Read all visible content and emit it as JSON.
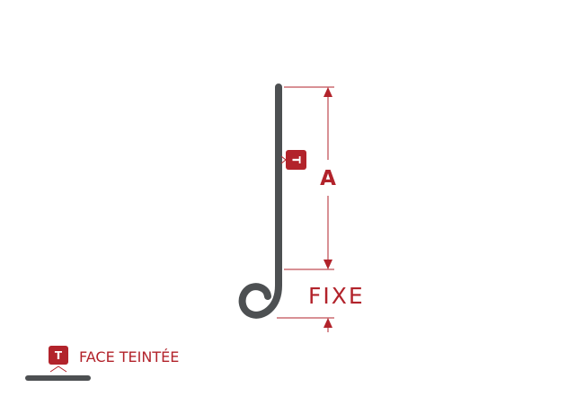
{
  "diagram": {
    "dimension_label": "A",
    "fixed_label": "FIXE",
    "badge_letter": "T"
  },
  "legend": {
    "badge_letter": "T",
    "label": "FACE TEINTÉE"
  },
  "colors": {
    "accent": "#b2232b",
    "profile": "#4d5052",
    "background": "#ffffff"
  }
}
